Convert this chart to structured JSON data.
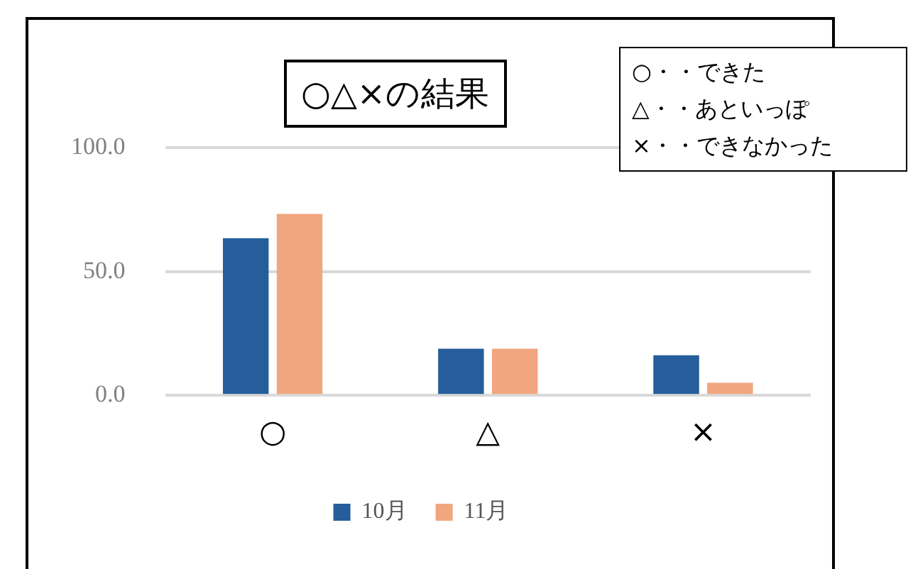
{
  "chart_data": {
    "type": "bar",
    "title": "○△×の結果",
    "categories": [
      "○",
      "△",
      "×"
    ],
    "series": [
      {
        "name": "10月",
        "color": "#255e9b",
        "values": [
          63.4,
          18.8,
          16.2
        ]
      },
      {
        "name": "11月",
        "color": "#f0a67e",
        "values": [
          73.2,
          18.8,
          5.1
        ]
      }
    ],
    "ylim": [
      0,
      100
    ],
    "yticks": [
      {
        "value": 0,
        "label": "0.0"
      },
      {
        "value": 50,
        "label": "50.0"
      },
      {
        "value": 100,
        "label": "100.0"
      }
    ],
    "grid": "y",
    "legend": "bottom",
    "annotations": [
      "○・・できた",
      "△・・あといっぽ",
      "×・・できなかった"
    ]
  }
}
